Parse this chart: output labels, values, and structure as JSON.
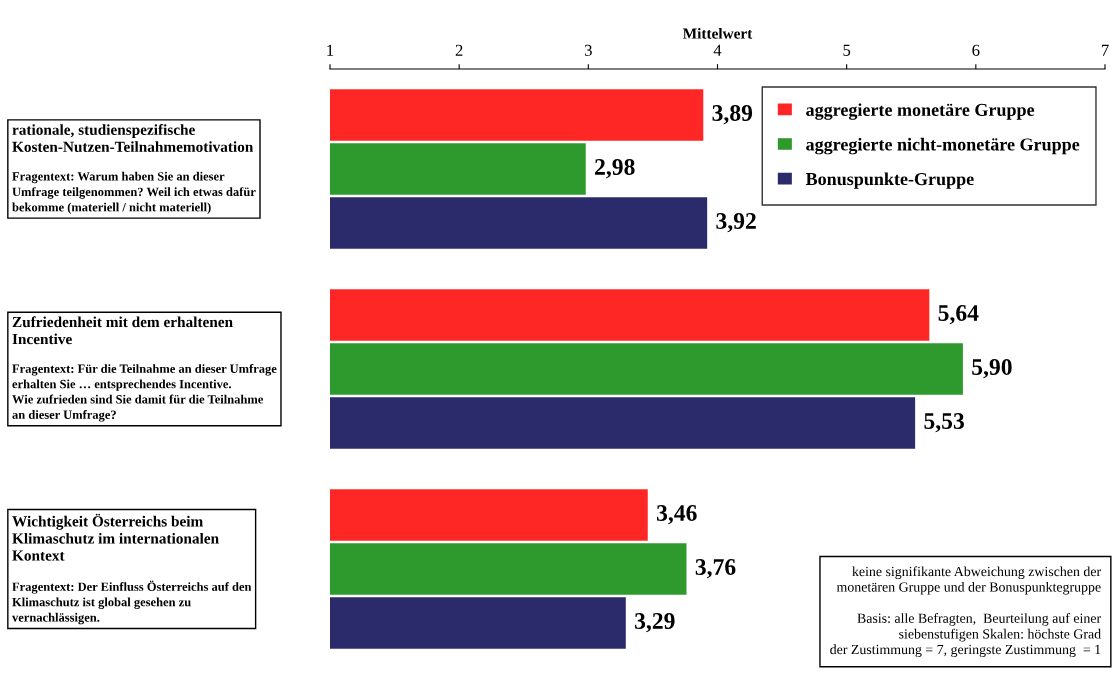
{
  "chart_data": {
    "type": "bar",
    "orientation": "horizontal",
    "xlabel": "Mittelwert",
    "categories": [
      "rationale, studienspezifische\nKosten-Nutzen-Teilnahmemotivation\n\nFragentext: Warum haben Sie an dieser\nUmfrage teilgenommen? Weil ich etwas dafür\nbekomme (materiell / nicht materiell)",
      "Zufriedenheit mit dem erhaltenen\nIncentive\n\nFragentext: Für die Teilnahme an dieser Umfrage\nerhalten Sie … entsprechendes Incentive.\nWie zufrieden sind Sie damit für die Teilnahme\nan dieser Umfrage?",
      "Wichtigkeit Österreichs beim\nKlimaschutz im internationalen\nKontext\n\nFragentext: Der Einfluss Österreichs auf den\nKlimaschutz ist global gesehen zu\nvernachlässigen."
    ],
    "series": [
      {
        "name": "aggregierte monetäre Gruppe",
        "color": "#ff2626",
        "values": [
          3.89,
          5.64,
          3.46
        ],
        "value_labels": [
          "3,89",
          "5,64",
          "3,46"
        ]
      },
      {
        "name": "aggregierte nicht-monetäre Gruppe",
        "color": "#2e9a2e",
        "values": [
          2.98,
          5.9,
          3.76
        ],
        "value_labels": [
          "2,98",
          "5,90",
          "3,76"
        ]
      },
      {
        "name": "Bonuspunkte-Gruppe",
        "color": "#2b2b6b",
        "values": [
          3.92,
          5.53,
          3.29
        ],
        "value_labels": [
          "3,92",
          "5,53",
          "3,29"
        ]
      }
    ],
    "xlim": [
      1,
      7
    ],
    "xticks": [
      1,
      2,
      3,
      4,
      5,
      6,
      7
    ],
    "legend": "top right",
    "grid": false,
    "annotations": [
      "keine signifikante Abweichung zwischen der\nmonetären Gruppe und der Bonuspunktegruppe\n\nBasis: alle Befragten,  Beurteilung auf einer\nsiebenstufigen Skalen: höchste Grad\nder Zustimmung = 7, geringste Zustimmung  = 1"
    ]
  }
}
